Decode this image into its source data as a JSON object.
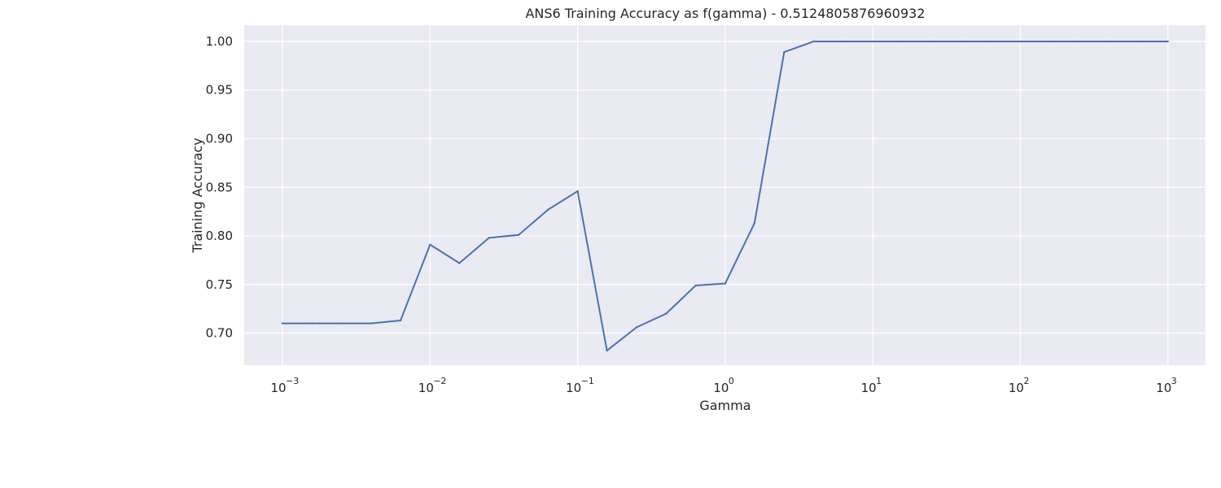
{
  "chart_data": {
    "type": "line",
    "title": "ANS6 Training Accuracy as f(gamma) - 0.5124805876960932",
    "xlabel": "Gamma",
    "ylabel": "Training Accuracy",
    "x_scale": "log",
    "xlim": [
      0.00055,
      1800
    ],
    "ylim": [
      0.667,
      1.0167
    ],
    "grid": true,
    "x_ticks": [
      {
        "value": 0.001,
        "base": "10",
        "exp": "−3"
      },
      {
        "value": 0.01,
        "base": "10",
        "exp": "−2"
      },
      {
        "value": 0.1,
        "base": "10",
        "exp": "−1"
      },
      {
        "value": 1,
        "base": "10",
        "exp": "0"
      },
      {
        "value": 10,
        "base": "10",
        "exp": "1"
      },
      {
        "value": 100,
        "base": "10",
        "exp": "2"
      },
      {
        "value": 1000,
        "base": "10",
        "exp": "3"
      }
    ],
    "y_ticks": [
      {
        "value": 0.7,
        "label": "0.70"
      },
      {
        "value": 0.75,
        "label": "0.75"
      },
      {
        "value": 0.8,
        "label": "0.80"
      },
      {
        "value": 0.85,
        "label": "0.85"
      },
      {
        "value": 0.9,
        "label": "0.90"
      },
      {
        "value": 0.95,
        "label": "0.95"
      },
      {
        "value": 1.0,
        "label": "1.00"
      }
    ],
    "series": [
      {
        "color": "#4c72b0",
        "x": [
          0.001,
          0.00159,
          0.00251,
          0.00398,
          0.00631,
          0.01,
          0.0158,
          0.0251,
          0.0398,
          0.0631,
          0.1,
          0.158,
          0.251,
          0.398,
          0.631,
          1.0,
          1.58,
          2.51,
          3.98,
          6.31,
          10,
          15.8,
          25.1,
          39.8,
          63.1,
          100,
          158,
          251,
          398,
          631,
          1000
        ],
        "y": [
          0.71,
          0.71,
          0.71,
          0.71,
          0.713,
          0.791,
          0.772,
          0.798,
          0.801,
          0.827,
          0.846,
          0.682,
          0.706,
          0.72,
          0.749,
          0.751,
          0.813,
          0.989,
          1.0,
          1.0,
          1.0,
          1.0,
          1.0,
          1.0,
          1.0,
          1.0,
          1.0,
          1.0,
          1.0,
          1.0,
          1.0
        ]
      }
    ]
  }
}
